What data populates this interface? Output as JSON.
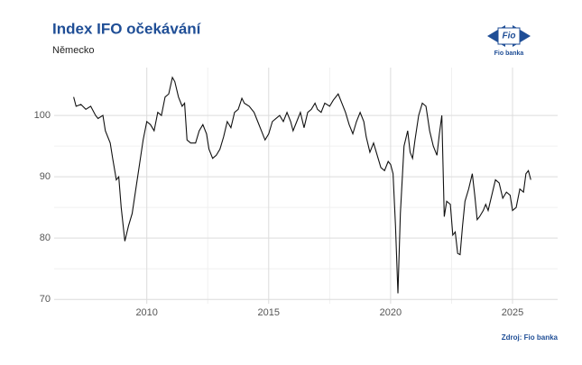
{
  "chart_data": {
    "type": "line",
    "title": "Index IFO očekávání",
    "subtitle": "Německo",
    "source": "Zdroj: Fio banka",
    "color": "#111111",
    "grid": true,
    "xlim": [
      2006.2,
      2026.85
    ],
    "xticks": [
      2010,
      2015,
      2020,
      2025
    ],
    "ylim": [
      69.3,
      107.8
    ],
    "yticks": [
      70,
      80,
      90,
      100
    ],
    "x": [
      2007.0,
      2007.1,
      2007.3,
      2007.5,
      2007.7,
      2007.9,
      2008.0,
      2008.2,
      2008.3,
      2008.5,
      2008.6,
      2008.75,
      2008.85,
      2008.95,
      2009.1,
      2009.25,
      2009.4,
      2009.55,
      2009.7,
      2009.85,
      2010.0,
      2010.15,
      2010.3,
      2010.45,
      2010.6,
      2010.75,
      2010.9,
      2011.05,
      2011.15,
      2011.3,
      2011.45,
      2011.55,
      2011.65,
      2011.8,
      2012.0,
      2012.15,
      2012.3,
      2012.45,
      2012.55,
      2012.7,
      2012.85,
      2013.0,
      2013.15,
      2013.3,
      2013.45,
      2013.6,
      2013.75,
      2013.9,
      2014.0,
      2014.2,
      2014.4,
      2014.55,
      2014.7,
      2014.85,
      2015.0,
      2015.15,
      2015.3,
      2015.45,
      2015.6,
      2015.75,
      2015.9,
      2016.0,
      2016.15,
      2016.3,
      2016.45,
      2016.6,
      2016.75,
      2016.9,
      2017.0,
      2017.15,
      2017.3,
      2017.5,
      2017.65,
      2017.85,
      2018.0,
      2018.15,
      2018.3,
      2018.45,
      2018.6,
      2018.75,
      2018.9,
      2019.0,
      2019.15,
      2019.3,
      2019.45,
      2019.6,
      2019.75,
      2019.9,
      2020.0,
      2020.1,
      2020.2,
      2020.3,
      2020.4,
      2020.55,
      2020.7,
      2020.8,
      2020.9,
      2021.0,
      2021.15,
      2021.3,
      2021.45,
      2021.6,
      2021.75,
      2021.9,
      2022.0,
      2022.1,
      2022.2,
      2022.3,
      2022.45,
      2022.55,
      2022.65,
      2022.75,
      2022.85,
      2022.95,
      2023.05,
      2023.2,
      2023.35,
      2023.45,
      2023.55,
      2023.65,
      2023.8,
      2023.9,
      2024.0,
      2024.15,
      2024.3,
      2024.45,
      2024.6,
      2024.75,
      2024.9,
      2025.0,
      2025.15,
      2025.3,
      2025.45,
      2025.55,
      2025.65,
      2025.75
    ],
    "values": [
      103,
      101.5,
      101.8,
      101,
      101.5,
      100,
      99.5,
      100,
      97.5,
      95.5,
      93,
      89.5,
      90,
      85,
      79.5,
      82,
      84,
      88,
      92,
      96,
      99,
      98.5,
      97.5,
      100.5,
      100,
      103,
      103.5,
      106.2,
      105.5,
      103,
      101.5,
      102,
      96,
      95.5,
      95.5,
      97.5,
      98.5,
      97,
      94.5,
      93,
      93.5,
      94.5,
      96.5,
      99,
      98,
      100.5,
      101,
      102.8,
      102,
      101.5,
      100.5,
      99,
      97.5,
      96,
      97,
      99,
      99.5,
      100,
      99,
      100.5,
      99,
      97.5,
      99,
      100.5,
      98,
      100.5,
      101,
      102,
      101,
      100.5,
      102,
      101.5,
      102.5,
      103.5,
      102,
      100.5,
      98.5,
      97,
      99,
      100.5,
      99,
      96.5,
      94,
      95.5,
      93.5,
      91.5,
      91,
      92.5,
      92,
      90.5,
      82,
      71,
      84,
      95,
      97.5,
      94,
      93,
      96,
      100,
      102,
      101.5,
      97.5,
      95,
      93.5,
      97,
      100,
      83.5,
      86,
      85.5,
      80.5,
      81,
      77.5,
      77.3,
      82,
      86,
      88,
      90.5,
      87,
      83,
      83.5,
      84.5,
      85.5,
      84.5,
      87,
      89.5,
      89,
      86.5,
      87.5,
      87,
      84.5,
      85,
      88,
      87.5,
      90.5,
      91,
      89.5
    ]
  },
  "logo": {
    "mark": "Fio",
    "name": "Fio banka"
  }
}
